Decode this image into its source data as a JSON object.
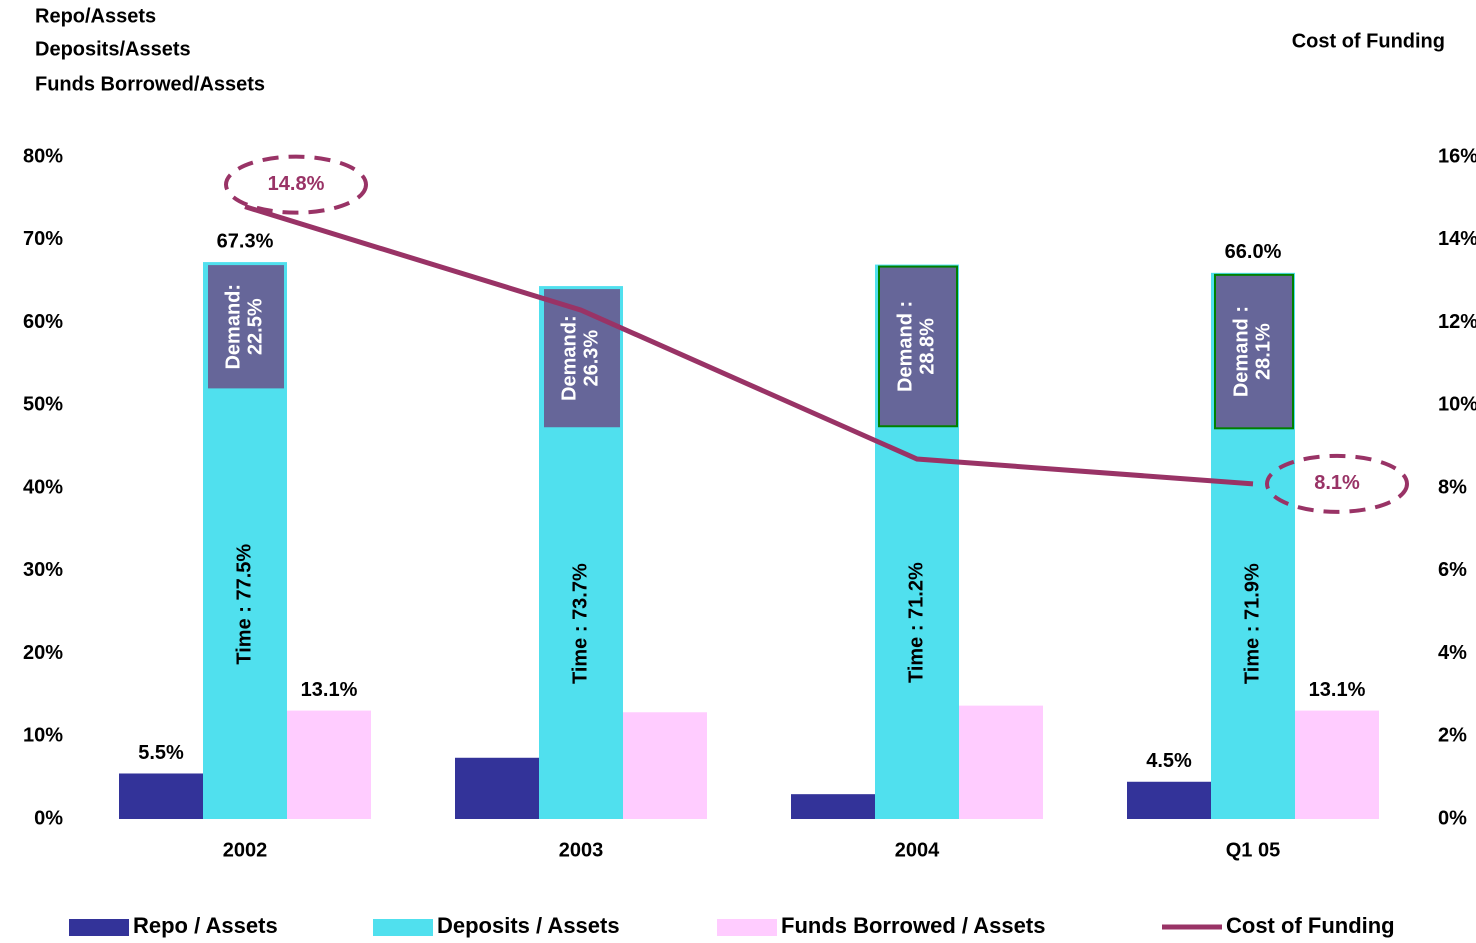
{
  "chart_data": {
    "type": "bar",
    "left_title": [
      "Repo/Assets",
      "Deposits/Assets",
      "Funds Borrowed/Assets"
    ],
    "right_title": "Cost of Funding",
    "categories": [
      "2002",
      "2003",
      "2004",
      "Q1 05"
    ],
    "series": [
      {
        "name": "Repo / Assets",
        "color": "#333399",
        "values": [
          5.5,
          7.4,
          3.0,
          4.5
        ],
        "value_labels": [
          "5.5%",
          null,
          null,
          "4.5%"
        ]
      },
      {
        "name": "Deposits / Assets",
        "color": "#50e0ee",
        "values": [
          67.3,
          64.4,
          67.0,
          66.0
        ],
        "value_labels": [
          "67.3%",
          null,
          null,
          "66.0%"
        ]
      },
      {
        "name": "Funds Borrowed / Assets",
        "color": "#ffccff",
        "values": [
          13.1,
          12.9,
          13.7,
          13.1
        ],
        "value_labels": [
          "13.1%",
          null,
          null,
          "13.1%"
        ]
      },
      {
        "name": "Cost of Funding",
        "type": "line",
        "axis": "y2",
        "color": "#993366",
        "values": [
          14.8,
          12.3,
          8.7,
          8.1
        ],
        "value_labels": [
          "14.8%",
          null,
          null,
          "8.1%"
        ]
      }
    ],
    "breakdown": {
      "demand_color": "#666699",
      "demand_border": [
        "#50e0ee",
        "#50e0ee",
        "#008000",
        "#008000"
      ],
      "demand_labels": [
        "Demand:",
        "Demand:",
        "Demand :",
        "Demand :"
      ],
      "demand": [
        22.5,
        26.3,
        28.8,
        28.1
      ],
      "demand_value_labels": [
        "22.5%",
        "26.3%",
        "28.8%",
        "28.1%"
      ],
      "time": [
        77.5,
        73.7,
        71.2,
        71.9
      ],
      "time_labels": [
        "Time : 77.5%",
        "Time : 73.7%",
        "Time : 71.2%",
        "Time : 71.9%"
      ]
    },
    "ylim": [
      0,
      80
    ],
    "yticks": [
      {
        "value": 0,
        "label": "0%"
      },
      {
        "value": 10,
        "label": "10%"
      },
      {
        "value": 20,
        "label": "20%"
      },
      {
        "value": 30,
        "label": "30%"
      },
      {
        "value": 40,
        "label": "40%"
      },
      {
        "value": 50,
        "label": "50%"
      },
      {
        "value": 60,
        "label": "60%"
      },
      {
        "value": 70,
        "label": "70%"
      },
      {
        "value": 80,
        "label": "80%"
      }
    ],
    "y2lim": [
      0,
      16
    ],
    "y2ticks": [
      {
        "value": 0,
        "label": "0%"
      },
      {
        "value": 2,
        "label": "2%"
      },
      {
        "value": 4,
        "label": "4%"
      },
      {
        "value": 6,
        "label": "6%"
      },
      {
        "value": 8,
        "label": "8%"
      },
      {
        "value": 10,
        "label": "10%"
      },
      {
        "value": 12,
        "label": "12%"
      },
      {
        "value": 14,
        "label": "14%"
      },
      {
        "value": 16,
        "label": "16%"
      }
    ],
    "grid": false,
    "legend": "bottom"
  }
}
